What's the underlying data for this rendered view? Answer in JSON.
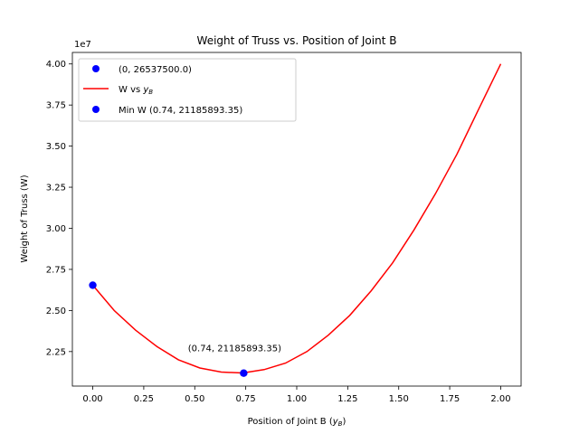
{
  "chart_data": {
    "type": "line",
    "title": "Weight of Truss vs. Position of Joint B",
    "xlabel_main": "Position of Joint B (",
    "xlabel_sym": "y",
    "xlabel_sub": "B",
    "xlabel_end": ")",
    "ylabel": "Weight of Truss (W)",
    "y_offset_label": "1e7",
    "y_scale": 10000000,
    "xlim": [
      -0.1,
      2.1
    ],
    "ylim": [
      20400000,
      40700000
    ],
    "x_ticks": [
      0.0,
      0.25,
      0.5,
      0.75,
      1.0,
      1.25,
      1.5,
      1.75,
      2.0
    ],
    "x_tick_labels": [
      "0.00",
      "0.25",
      "0.50",
      "0.75",
      "1.00",
      "1.25",
      "1.50",
      "1.75",
      "2.00"
    ],
    "y_ticks": [
      22500000,
      25000000,
      27500000,
      30000000,
      32500000,
      35000000,
      37500000,
      40000000
    ],
    "y_tick_labels": [
      "2.25",
      "2.50",
      "2.75",
      "3.00",
      "3.25",
      "3.50",
      "3.75",
      "4.00"
    ],
    "series": [
      {
        "name_main": "W vs ",
        "name_sym": "y",
        "name_sub": "B",
        "color": "#ff0000",
        "x": [
          0.0,
          0.105,
          0.21,
          0.315,
          0.42,
          0.525,
          0.63,
          0.735,
          0.84,
          0.945,
          1.05,
          1.155,
          1.26,
          1.365,
          1.47,
          1.575,
          1.68,
          1.785,
          1.89,
          2.0
        ],
        "y": [
          26537500,
          25000000,
          23800000,
          22800000,
          22000000,
          21500000,
          21250000,
          21200000,
          21400000,
          21800000,
          22500000,
          23500000,
          24700000,
          26200000,
          27900000,
          29900000,
          32100000,
          34500000,
          37200000,
          40000000
        ]
      }
    ],
    "points": [
      {
        "label": "(0, 26537500.0)",
        "x": 0.0,
        "y": 26537500,
        "color": "#0000ff"
      },
      {
        "label": "Min W (0.74, 21185893.35)",
        "x": 0.74,
        "y": 21185893.35,
        "color": "#0000ff"
      }
    ],
    "annotation": {
      "text": "(0.74, 21185893.35)",
      "x": 0.74,
      "y": 21185893.35
    },
    "legend_placement": "upper-left",
    "grid": false
  }
}
